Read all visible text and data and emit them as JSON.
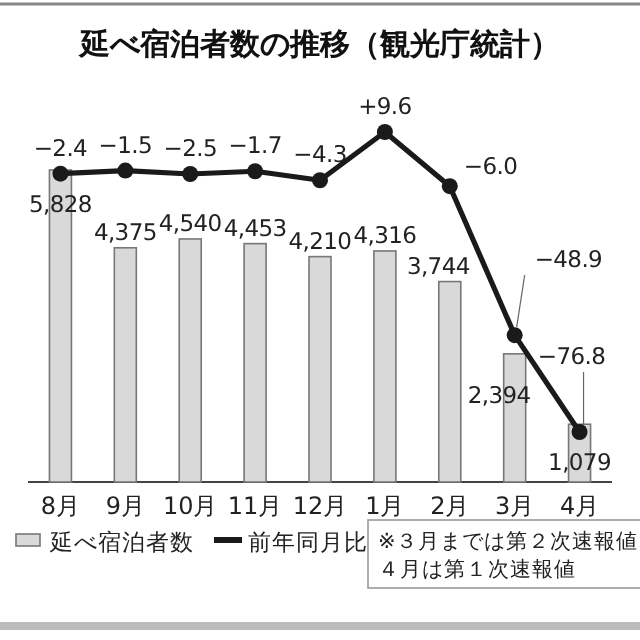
{
  "chart_data": {
    "type": "bar",
    "title": "延べ宿泊者数の推移（観光庁統計）",
    "categories": [
      "8月",
      "9月",
      "10月",
      "11月",
      "12月",
      "1月",
      "2月",
      "3月",
      "4月"
    ],
    "series": [
      {
        "name": "延べ宿泊者数",
        "color": "#d9d9d9",
        "values": [
          5828,
          4375,
          4540,
          4453,
          4210,
          4316,
          3744,
          2394,
          1079
        ],
        "value_labels": [
          "5,828",
          "4,375",
          "4,540",
          "4,453",
          "4,210",
          "4,316",
          "3,744",
          "2,394",
          "1,079"
        ]
      },
      {
        "name": "前年同月比",
        "type": "line",
        "axis": "y2",
        "color": "#1a1a1a",
        "marker": "circle",
        "line_style": "solid",
        "values": [
          -2.4,
          -1.5,
          -2.5,
          -1.7,
          -4.3,
          9.6,
          -6.0,
          -48.9,
          -76.8
        ],
        "value_labels": [
          "−2.4",
          "−1.5",
          "−2.5",
          "−1.7",
          "−4.3",
          "+9.6",
          "−6.0",
          "−48.9",
          "−76.8"
        ]
      }
    ],
    "legend": "bottom left",
    "annotations": [
      "※３月までは第２次速報値",
      "４月は第１次速報値"
    ]
  }
}
